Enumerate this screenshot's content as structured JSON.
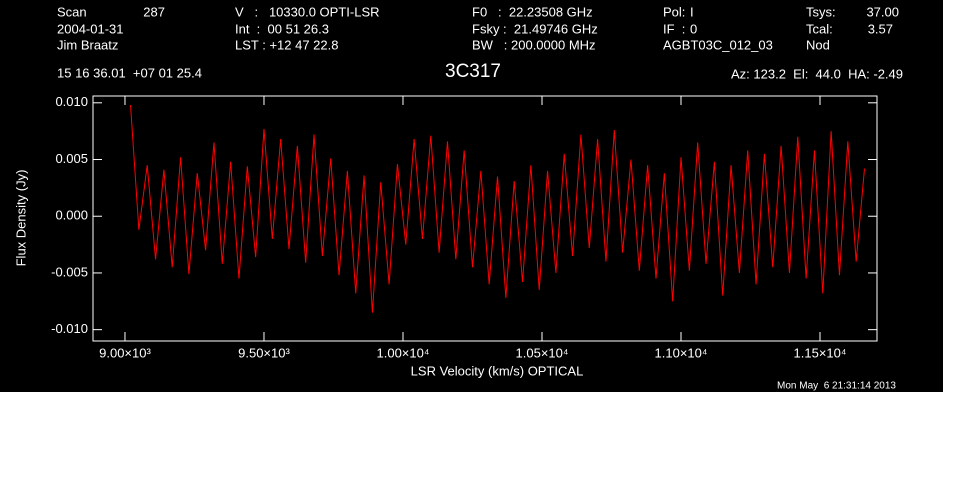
{
  "header": {
    "rows": [
      [
        "Scan",
        "287",
        "V   :   10330.0 OPTI-LSR",
        "F0   :  22.23508 GHz",
        "Pol:",
        "I",
        "Tsys:",
        "37.00"
      ],
      [
        "2004-01-31",
        "Int  :  00 51 26.3",
        "Fsky :  21.49746 GHz",
        "IF  :",
        "0",
        "Tcal:",
        "3.57"
      ],
      [
        "Jim Braatz",
        "LST : +12 47 22.8",
        "BW   : 200.0000 MHz",
        "AGBT03C_012_03",
        "Nod"
      ],
      [
        "15 16 36.01  +07 01 25.4",
        "Az: 123.2  El:  44.0  HA: -2.49"
      ]
    ],
    "footer": "Mon May  6 21:31:14 2013"
  },
  "chart_data": {
    "type": "line",
    "title": "3C317",
    "x_label": "LSR Velocity (km/s) OPTICAL",
    "y_label": "Flux Density (Jy)",
    "color": "#ff0000",
    "x": [
      9020,
      9050,
      9080,
      9110,
      9140,
      9170,
      9200,
      9230,
      9260,
      9290,
      9320,
      9350,
      9380,
      9410,
      9440,
      9470,
      9500,
      9530,
      9560,
      9590,
      9620,
      9650,
      9680,
      9710,
      9740,
      9770,
      9800,
      9830,
      9860,
      9890,
      9920,
      9950,
      9980,
      10010,
      10040,
      10070,
      10100,
      10130,
      10160,
      10190,
      10220,
      10250,
      10280,
      10310,
      10340,
      10370,
      10400,
      10430,
      10460,
      10490,
      10520,
      10550,
      10580,
      10610,
      10640,
      10670,
      10700,
      10730,
      10760,
      10790,
      10820,
      10850,
      10880,
      10910,
      10940,
      10970,
      11000,
      11030,
      11060,
      11090,
      11120,
      11150,
      11180,
      11210,
      11240,
      11270,
      11300,
      11330,
      11360,
      11390,
      11420,
      11450,
      11480,
      11510,
      11540,
      11570,
      11600,
      11630,
      11660
    ],
    "values": [
      0.0098,
      -0.0012,
      0.0045,
      -0.0038,
      0.0041,
      -0.0045,
      0.0052,
      -0.0051,
      0.0038,
      -0.003,
      0.0065,
      -0.0042,
      0.0048,
      -0.0055,
      0.0044,
      -0.0036,
      0.0077,
      -0.002,
      0.0068,
      -0.0029,
      0.0062,
      -0.0041,
      0.0072,
      -0.0035,
      0.0051,
      -0.0052,
      0.004,
      -0.0068,
      0.0036,
      -0.0085,
      0.003,
      -0.006,
      0.0046,
      -0.0025,
      0.0068,
      -0.002,
      0.0071,
      -0.0032,
      0.0066,
      -0.0038,
      0.0058,
      -0.0045,
      0.004,
      -0.006,
      0.0035,
      -0.0072,
      0.0031,
      -0.0058,
      0.0045,
      -0.0065,
      0.004,
      -0.005,
      0.0055,
      -0.0035,
      0.0072,
      -0.0028,
      0.0068,
      -0.004,
      0.0076,
      -0.0032,
      0.005,
      -0.0048,
      0.0045,
      -0.0055,
      0.0038,
      -0.0075,
      0.0052,
      -0.0048,
      0.0065,
      -0.0042,
      0.0048,
      -0.007,
      0.0045,
      -0.005,
      0.0058,
      -0.006,
      0.0055,
      -0.0045,
      0.0062,
      -0.005,
      0.007,
      -0.0055,
      0.0058,
      -0.0068,
      0.0075,
      -0.0052,
      0.0066,
      -0.004,
      0.0042
    ],
    "xlim": [
      8885,
      11705
    ],
    "ylim": [
      -0.011,
      0.0106
    ],
    "xticks": [
      {
        "value": 9000,
        "label": "9.00×10³"
      },
      {
        "value": 9500,
        "label": "9.50×10³"
      },
      {
        "value": 10000,
        "label": "1.00×10⁴"
      },
      {
        "value": 10500,
        "label": "1.05×10⁴"
      },
      {
        "value": 11000,
        "label": "1.10×10⁴"
      },
      {
        "value": 11500,
        "label": "1.15×10⁴"
      }
    ],
    "yticks": [
      {
        "value": -0.01,
        "label": "-0.010"
      },
      {
        "value": -0.005,
        "label": "-0.005"
      },
      {
        "value": 0,
        "label": "0.000"
      },
      {
        "value": 0.005,
        "label": "0.005"
      },
      {
        "value": 0.01,
        "label": "0.010"
      }
    ]
  }
}
